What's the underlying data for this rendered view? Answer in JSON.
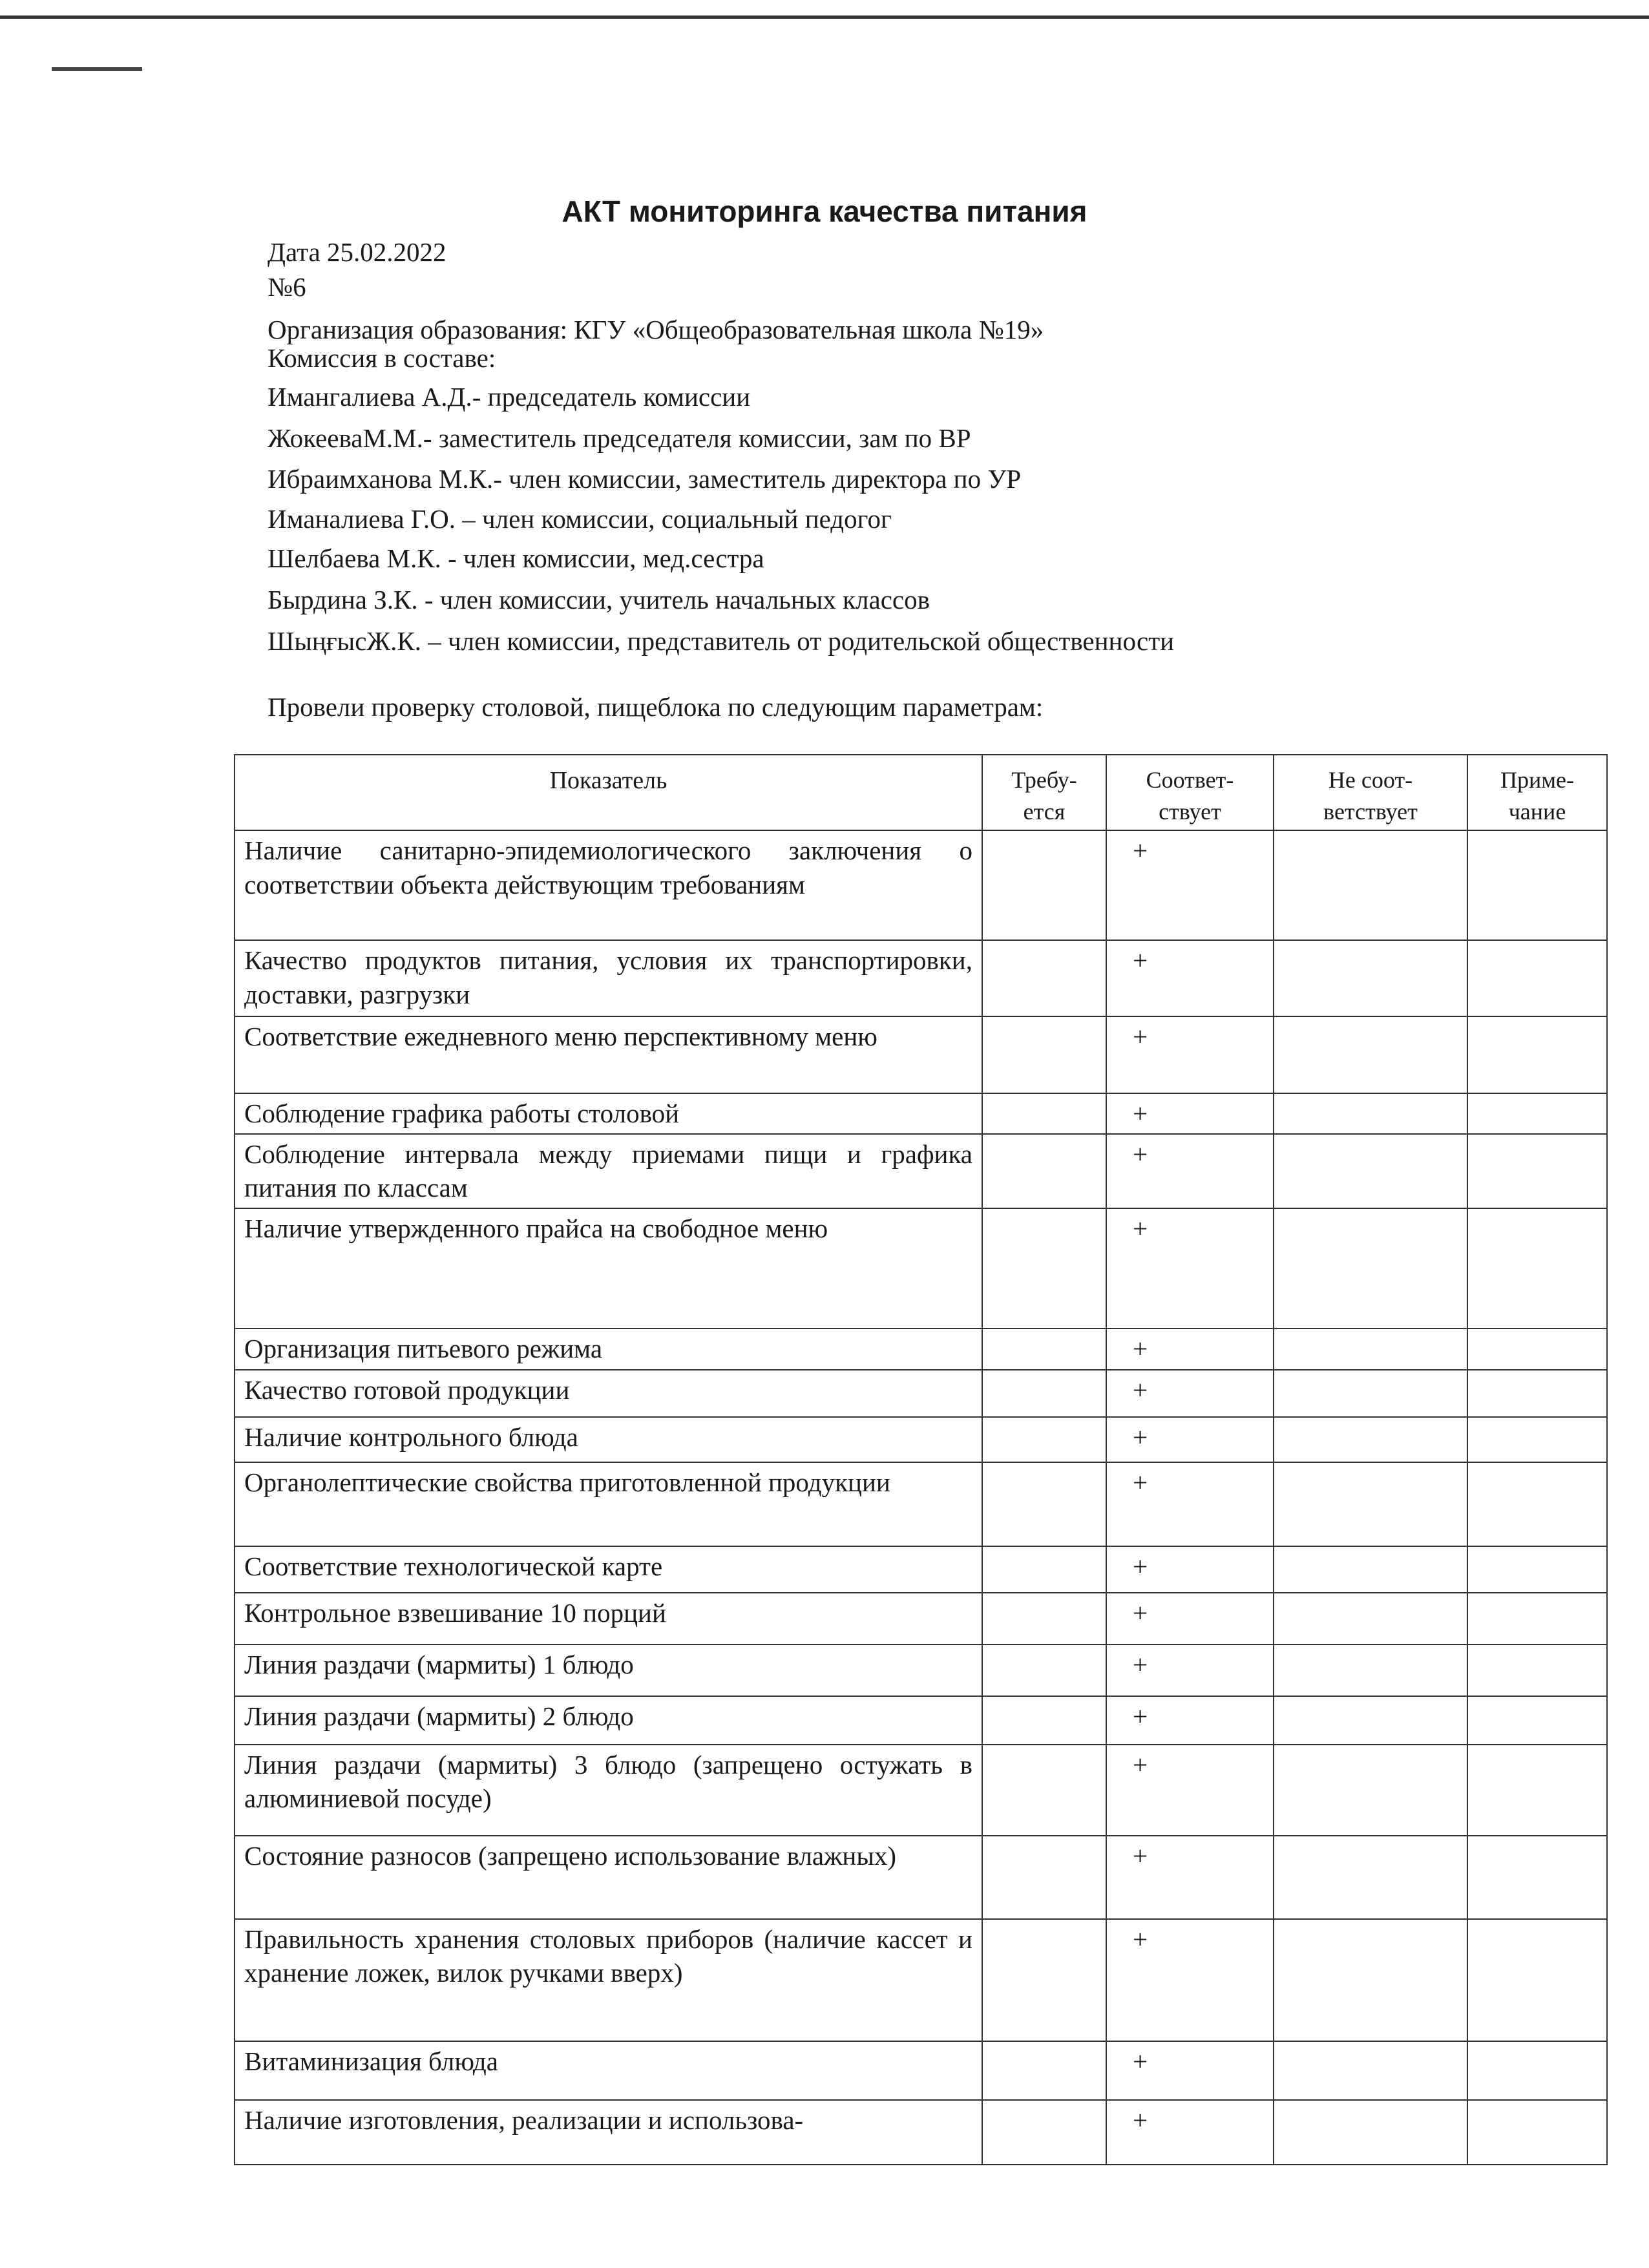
{
  "title": "АКТ мониторинга качества питания",
  "date_line": "Дата 25.02.2022",
  "number": "№6",
  "organization": "Организация образования: КГУ «Общеобразовательная школа №19»",
  "commission_label": "Комиссия в составе:",
  "members": [
    "Имангалиева А.Д.- председатель комиссии",
    "ЖокееваМ.М.- заместитель председателя комиссии, зам по ВР",
    "Ибраимханова М.К.- член комиссии,  заместитель директора по УР",
    "Иманалиева Г.О. – член комиссии,  социальный педогог",
    "Шелбаева М.К.   - член комиссии, мед.сестра",
    "Бырдина З.К. - член комиссии, учитель начальных классов",
    "ШыңғысЖ.К.  – член комиссии,  представитель от родительской общественности"
  ],
  "intro": "Провели проверку столовой, пищеблока по следующим параметрам:",
  "table": {
    "headers": [
      "Показатель",
      "Требу-ется",
      "Соответ-ствует",
      "Не соот-ветствует",
      "Приме-чание"
    ],
    "rows": [
      {
        "indicator": "Наличие санитарно-эпидемиологического заключения о соответствии объекта действующим требованиям",
        "required": "",
        "complies": "+",
        "not_complies": "",
        "note": ""
      },
      {
        "indicator": "Качество продуктов питания, условия их транспортировки, доставки, разгрузки",
        "required": "",
        "complies": "+",
        "not_complies": "",
        "note": ""
      },
      {
        "indicator": "Соответствие ежедневного меню перспективному меню",
        "required": "",
        "complies": "+",
        "not_complies": "",
        "note": ""
      },
      {
        "indicator": "Соблюдение графика работы столовой",
        "required": "",
        "complies": "+",
        "not_complies": "",
        "note": ""
      },
      {
        "indicator": "Соблюдение интервала между приемами пищи и графика питания по классам",
        "required": "",
        "complies": "+",
        "not_complies": "",
        "note": ""
      },
      {
        "indicator": "Наличие утвержденного прайса на свободное меню",
        "required": "",
        "complies": "+",
        "not_complies": "",
        "note": ""
      },
      {
        "indicator": "Организация питьевого режима",
        "required": "",
        "complies": "+",
        "not_complies": "",
        "note": ""
      },
      {
        "indicator": "Качество готовой продукции",
        "required": "",
        "complies": "+",
        "not_complies": "",
        "note": ""
      },
      {
        "indicator": "Наличие контрольного блюда",
        "required": "",
        "complies": "+",
        "not_complies": "",
        "note": ""
      },
      {
        "indicator": "Органолептические свойства приготовленной продукции",
        "required": "",
        "complies": "+",
        "not_complies": "",
        "note": ""
      },
      {
        "indicator": "Соответствие технологической карте",
        "required": "",
        "complies": "+",
        "not_complies": "",
        "note": ""
      },
      {
        "indicator": "Контрольное взвешивание 10 порций",
        "required": "",
        "complies": "+",
        "not_complies": "",
        "note": ""
      },
      {
        "indicator": "Линия раздачи (мармиты) 1 блюдо",
        "required": "",
        "complies": "+",
        "not_complies": "",
        "note": ""
      },
      {
        "indicator": "Линия раздачи (мармиты)  2 блюдо",
        "required": "",
        "complies": "+",
        "not_complies": "",
        "note": ""
      },
      {
        "indicator": "Линия раздачи (мармиты) 3 блюдо (запрещено остужать в алюминиевой посуде)",
        "required": "",
        "complies": "+",
        "not_complies": "",
        "note": ""
      },
      {
        "indicator": "Состояние разносов (запрещено использование влажных)",
        "required": "",
        "complies": "+",
        "not_complies": "",
        "note": ""
      },
      {
        "indicator": "Правильность хранения столовых приборов (наличие кассет и хранение ложек, вилок ручками вверх)",
        "required": "",
        "complies": "+",
        "not_complies": "",
        "note": ""
      },
      {
        "indicator": "Витаминизация блюда",
        "required": "",
        "complies": "+",
        "not_complies": "",
        "note": ""
      },
      {
        "indicator": "Наличие изготовления, реализации и использова-",
        "required": "",
        "complies": "+",
        "not_complies": "",
        "note": ""
      }
    ]
  }
}
